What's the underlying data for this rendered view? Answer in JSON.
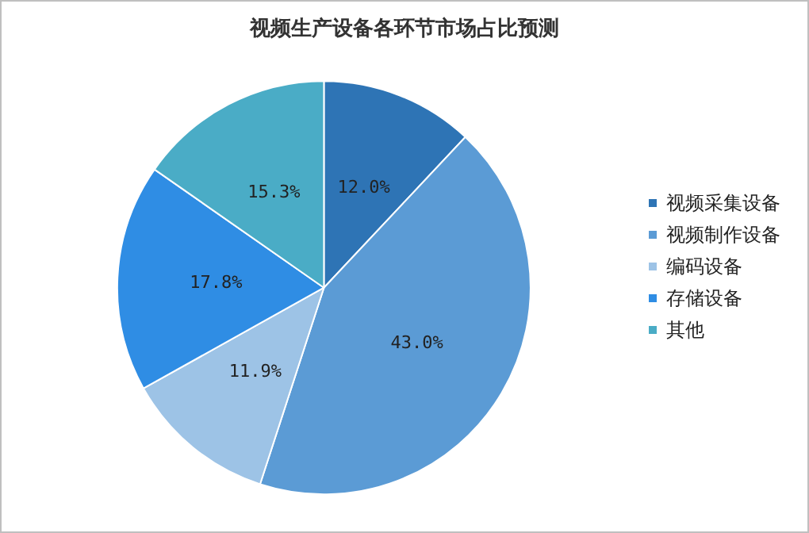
{
  "chart_data": {
    "type": "pie",
    "title": "视频生产设备各环节市场占比预测",
    "categories": [
      "视频采集设备",
      "视频制作设备",
      "编码设备",
      "存储设备",
      "其他"
    ],
    "values": [
      12.0,
      43.0,
      11.9,
      17.8,
      15.3
    ],
    "value_labels": [
      "12.0%",
      "43.0%",
      "11.9%",
      "17.8%",
      "15.3%"
    ],
    "colors": [
      "#2e74b5",
      "#5b9bd5",
      "#9dc3e6",
      "#2f8de4",
      "#4aacc6"
    ],
    "legend": "right"
  }
}
